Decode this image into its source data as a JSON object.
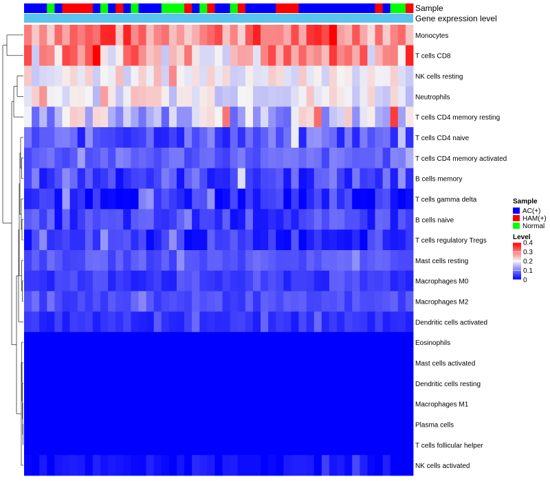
{
  "chart_data": {
    "type": "heatmap",
    "annotation_labels": [
      "Sample",
      "Gene expression level"
    ],
    "sample_groups": [
      "AC(+)",
      "AC(+)",
      "AC(+)",
      "Normal",
      "AC(+)",
      "HAM(+)",
      "HAM(+)",
      "HAM(+)",
      "HAM(+)",
      "AC(+)",
      "Normal",
      "AC(+)",
      "HAM(+)",
      "AC(+)",
      "Normal",
      "AC(+)",
      "AC(+)",
      "AC(+)",
      "Normal",
      "Normal",
      "Normal",
      "HAM(+)",
      "AC(+)",
      "Normal",
      "HAM(+)",
      "AC(+)",
      "AC(+)",
      "Normal",
      "HAM(+)",
      "AC(+)",
      "AC(+)",
      "AC(+)",
      "AC(+)",
      "HAM(+)",
      "HAM(+)",
      "HAM(+)",
      "AC(+)",
      "AC(+)",
      "AC(+)",
      "AC(+)",
      "AC(+)",
      "AC(+)",
      "AC(+)",
      "AC(+)",
      "AC(+)",
      "AC(+)",
      "HAM(+)",
      "AC(+)",
      "Normal",
      "Normal",
      "HAM(+)"
    ],
    "rows": [
      "Monocytes",
      "T cells CD8",
      "NK cells resting",
      "Neutrophils",
      "T cells CD4 memory resting",
      "T cells CD4 naive",
      "T cells CD4 memory activated",
      "B cells memory",
      "T cells gamma delta",
      "B cells naive",
      "T cells regulatory  Tregs",
      "Mast cells resting",
      "Macrophages M0",
      "Macrophages M2",
      "Dendritic cells activated",
      "Eosinophils",
      "Mast cells activated",
      "Dendritic cells resting",
      "Macrophages M1",
      "Plasma cells",
      "T cells follicular helper",
      "NK cells activated"
    ],
    "row_means": [
      0.3,
      0.26,
      0.2,
      0.2,
      0.16,
      0.07,
      0.08,
      0.06,
      0.03,
      0.05,
      0.04,
      0.07,
      0.05,
      0.06,
      0.04,
      0.0,
      0.0,
      0.0,
      0.0,
      0.0,
      0.0,
      0.01
    ],
    "row_spread": [
      0.08,
      0.1,
      0.04,
      0.05,
      0.08,
      0.05,
      0.03,
      0.05,
      0.04,
      0.04,
      0.04,
      0.02,
      0.03,
      0.02,
      0.02,
      0.0,
      0.0,
      0.0,
      0.0,
      0.0,
      0.0,
      0.02
    ],
    "color_scale": {
      "min": 0,
      "mid": 0.2,
      "max": 0.4,
      "low": "#0000FF",
      "midColor": "#F5F5F5",
      "high": "#FF0000"
    },
    "legend": {
      "sample_title": "Sample",
      "sample_entries": [
        {
          "label": "AC(+)",
          "color": "#0000FF"
        },
        {
          "label": "HAM(+)",
          "color": "#FF0000"
        },
        {
          "label": "Normal",
          "color": "#00FF00"
        }
      ],
      "level_title": "Level",
      "level_ticks": [
        "0.4",
        "0.3",
        "0.2",
        "0.1",
        "0"
      ],
      "position": "right"
    },
    "gene_expression_color": "#5BC4EE",
    "dendrogram": "hierarchical clustering of rows (left)"
  }
}
